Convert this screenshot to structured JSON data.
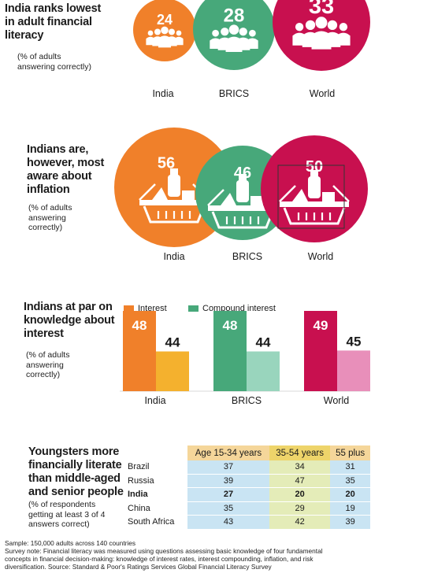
{
  "section1": {
    "title": "India ranks lowest in adult financial literacy",
    "title_lines": [
      "India ranks lowest",
      "in adult financial",
      "literacy"
    ],
    "sub_lines": [
      "(% of adults",
      "answering correctly)"
    ]
  },
  "section2": {
    "title_lines": [
      "Indians are,",
      "however, most",
      "aware about",
      "inflation"
    ],
    "sub_lines": [
      "(% of adults",
      "answering",
      "correctly)"
    ]
  },
  "section3": {
    "title_lines": [
      "Indians at par on",
      "knowledge about",
      "interest"
    ],
    "sub_lines": [
      "(% of adults",
      "answering",
      "correctly)"
    ],
    "legend": [
      "Interest",
      "Compound interest"
    ]
  },
  "section4": {
    "title_lines": [
      "Youngsters more",
      "financially literate",
      "than middle-aged",
      "and senior people"
    ],
    "sub_lines": [
      "(% of respondents",
      "getting at least 3 of 4",
      "answers correct)"
    ]
  },
  "colors": {
    "india": "#f0802a",
    "brics": "#47a87a",
    "world": "#c8104f",
    "india_light": "#f4b12e",
    "brics_light": "#99d5bd",
    "world_light": "#e88fba"
  },
  "chart_data": [
    {
      "type": "bar",
      "title": "India ranks lowest in adult financial literacy",
      "categories": [
        "India",
        "BRICS",
        "World"
      ],
      "values": [
        24,
        28,
        33
      ],
      "icon": "people-group-icon"
    },
    {
      "type": "bar",
      "title": "Indians are, however, most aware about inflation",
      "categories": [
        "India",
        "BRICS",
        "World"
      ],
      "values": [
        56,
        46,
        50
      ],
      "icon": "shopping-basket-icon"
    },
    {
      "type": "bar",
      "title": "Indians at par on knowledge about interest",
      "categories": [
        "India",
        "BRICS",
        "World"
      ],
      "series": [
        {
          "name": "Interest",
          "values": [
            48,
            48,
            49
          ]
        },
        {
          "name": "Compound interest",
          "values": [
            44,
            44,
            45
          ]
        }
      ],
      "ylim": [
        0,
        60
      ]
    },
    {
      "type": "table",
      "title": "Youngsters more financially literate than middle-aged and senior people",
      "columns": [
        "Age 15-34 years",
        "35-54 years",
        "55 plus"
      ],
      "rows": [
        {
          "country": "Brazil",
          "values": [
            37,
            34,
            31
          ]
        },
        {
          "country": "Russia",
          "values": [
            39,
            47,
            35
          ]
        },
        {
          "country": "India",
          "values": [
            27,
            20,
            20
          ]
        },
        {
          "country": "China",
          "values": [
            35,
            29,
            19
          ]
        },
        {
          "country": "South Africa",
          "values": [
            43,
            42,
            39
          ]
        }
      ]
    }
  ],
  "footer": {
    "sample": "Sample: 150,000 adults across 140 countries",
    "note_lines": [
      "Survey note: Financial literacy was measured using questions assessing basic knowledge of four fundamental",
      "concepts in financial decision-making: knowledge of interest rates, interest compounding, inflation, and risk",
      "diversification. Source: Standard & Poor's Ratings Services Global Financial Literacy Survey"
    ]
  }
}
